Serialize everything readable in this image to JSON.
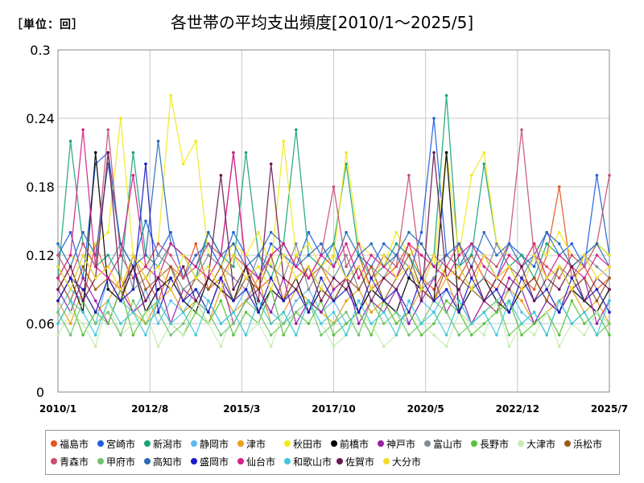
{
  "header": {
    "unit_label": "［単位：回］"
  },
  "chart_data": {
    "type": "line",
    "title": "各世帯の平均支出頻度[2010/1～2025/5]",
    "xlabel": "",
    "ylabel": "",
    "ylim": [
      0,
      0.3
    ],
    "y_ticks": [
      "0",
      "0.06",
      "0.12",
      "0.18",
      "0.24",
      "0.3"
    ],
    "x_ticks": [
      "2010/1",
      "2012/8",
      "2015/3",
      "2017/10",
      "2020/5",
      "2022/12",
      "2025/7"
    ],
    "x_range": [
      "2010/1",
      "2025/7"
    ],
    "grid": true,
    "legend_position": "bottom",
    "series": [
      {
        "name": "福島市",
        "color": "#e8541e",
        "values": [
          0.09,
          0.11,
          0.08,
          0.13,
          0.1,
          0.09,
          0.12,
          0.1,
          0.08,
          0.11,
          0.1,
          0.13,
          0.09,
          0.1,
          0.12,
          0.11,
          0.09,
          0.1,
          0.08,
          0.12,
          0.1,
          0.11,
          0.09,
          0.1,
          0.12,
          0.09,
          0.1,
          0.11,
          0.13,
          0.1,
          0.09,
          0.11,
          0.1,
          0.12,
          0.1,
          0.09,
          0.11,
          0.1,
          0.09,
          0.12,
          0.18,
          0.1,
          0.11,
          0.09,
          0.1
        ]
      },
      {
        "name": "宮崎市",
        "color": "#1f5fe0",
        "values": [
          0.12,
          0.14,
          0.1,
          0.2,
          0.21,
          0.13,
          0.11,
          0.15,
          0.12,
          0.14,
          0.1,
          0.12,
          0.13,
          0.11,
          0.14,
          0.12,
          0.1,
          0.13,
          0.12,
          0.11,
          0.14,
          0.12,
          0.13,
          0.1,
          0.12,
          0.11,
          0.13,
          0.12,
          0.1,
          0.14,
          0.24,
          0.12,
          0.11,
          0.13,
          0.12,
          0.1,
          0.13,
          0.12,
          0.11,
          0.14,
          0.12,
          0.13,
          0.11,
          0.19,
          0.12
        ]
      },
      {
        "name": "新潟市",
        "color": "#1aa37a",
        "values": [
          0.1,
          0.22,
          0.13,
          0.11,
          0.12,
          0.1,
          0.21,
          0.12,
          0.11,
          0.13,
          0.12,
          0.1,
          0.14,
          0.12,
          0.11,
          0.21,
          0.12,
          0.1,
          0.13,
          0.23,
          0.12,
          0.11,
          0.13,
          0.2,
          0.12,
          0.1,
          0.11,
          0.13,
          0.12,
          0.1,
          0.12,
          0.26,
          0.11,
          0.12,
          0.2,
          0.13,
          0.11,
          0.12,
          0.1,
          0.13,
          0.12,
          0.11,
          0.12,
          0.13,
          0.12
        ]
      },
      {
        "name": "静岡市",
        "color": "#5bbcf0",
        "values": [
          0.07,
          0.09,
          0.08,
          0.06,
          0.1,
          0.08,
          0.07,
          0.09,
          0.06,
          0.08,
          0.07,
          0.09,
          0.08,
          0.06,
          0.07,
          0.09,
          0.08,
          0.07,
          0.06,
          0.08,
          0.09,
          0.07,
          0.08,
          0.06,
          0.07,
          0.09,
          0.08,
          0.07,
          0.06,
          0.08,
          0.07,
          0.09,
          0.08,
          0.06,
          0.07,
          0.08,
          0.09,
          0.07,
          0.06,
          0.08,
          0.07,
          0.09,
          0.08,
          0.07,
          0.06
        ]
      },
      {
        "name": "津市",
        "color": "#e8a014",
        "values": [
          0.08,
          0.06,
          0.09,
          0.07,
          0.08,
          0.1,
          0.07,
          0.06,
          0.08,
          0.09,
          0.07,
          0.08,
          0.06,
          0.09,
          0.07,
          0.08,
          0.1,
          0.06,
          0.07,
          0.09,
          0.08,
          0.07,
          0.06,
          0.08,
          0.09,
          0.07,
          0.08,
          0.06,
          0.07,
          0.09,
          0.08,
          0.1,
          0.07,
          0.06,
          0.08,
          0.07,
          0.09,
          0.08,
          0.06,
          0.07,
          0.08,
          0.09,
          0.07,
          0.08,
          0.06
        ]
      },
      {
        "name": "秋田市",
        "color": "#f2e81c",
        "values": [
          0.1,
          0.12,
          0.11,
          0.13,
          0.14,
          0.24,
          0.12,
          0.11,
          0.13,
          0.26,
          0.2,
          0.22,
          0.12,
          0.11,
          0.13,
          0.12,
          0.14,
          0.11,
          0.22,
          0.12,
          0.13,
          0.11,
          0.12,
          0.21,
          0.13,
          0.12,
          0.11,
          0.14,
          0.12,
          0.13,
          0.11,
          0.21,
          0.12,
          0.19,
          0.21,
          0.13,
          0.12,
          0.11,
          0.13,
          0.12,
          0.14,
          0.12,
          0.11,
          0.13,
          0.12
        ]
      },
      {
        "name": "前橋市",
        "color": "#000000",
        "values": [
          0.08,
          0.1,
          0.07,
          0.21,
          0.09,
          0.08,
          0.11,
          0.07,
          0.09,
          0.1,
          0.08,
          0.07,
          0.1,
          0.09,
          0.08,
          0.11,
          0.07,
          0.09,
          0.08,
          0.1,
          0.07,
          0.09,
          0.08,
          0.1,
          0.07,
          0.09,
          0.08,
          0.07,
          0.1,
          0.09,
          0.08,
          0.21,
          0.07,
          0.09,
          0.1,
          0.08,
          0.07,
          0.09,
          0.1,
          0.08,
          0.07,
          0.09,
          0.08,
          0.07,
          0.09
        ]
      },
      {
        "name": "神戸市",
        "color": "#9b1fa8",
        "values": [
          0.09,
          0.07,
          0.1,
          0.08,
          0.06,
          0.09,
          0.07,
          0.08,
          0.1,
          0.06,
          0.09,
          0.08,
          0.07,
          0.1,
          0.06,
          0.08,
          0.09,
          0.07,
          0.1,
          0.06,
          0.08,
          0.07,
          0.09,
          0.1,
          0.06,
          0.08,
          0.07,
          0.09,
          0.06,
          0.08,
          0.1,
          0.07,
          0.09,
          0.06,
          0.08,
          0.07,
          0.1,
          0.09,
          0.06,
          0.08,
          0.07,
          0.09,
          0.1,
          0.06,
          0.08
        ]
      },
      {
        "name": "富山市",
        "color": "#7f8c9a",
        "values": [
          0.11,
          0.09,
          0.12,
          0.1,
          0.11,
          0.13,
          0.09,
          0.1,
          0.12,
          0.11,
          0.09,
          0.1,
          0.12,
          0.11,
          0.1,
          0.09,
          0.12,
          0.11,
          0.1,
          0.13,
          0.09,
          0.11,
          0.1,
          0.12,
          0.09,
          0.11,
          0.1,
          0.12,
          0.11,
          0.09,
          0.1,
          0.12,
          0.11,
          0.09,
          0.1,
          0.13,
          0.11,
          0.1,
          0.12,
          0.09,
          0.11,
          0.1,
          0.12,
          0.11,
          0.1
        ]
      },
      {
        "name": "長野市",
        "color": "#58c33a",
        "values": [
          0.06,
          0.08,
          0.05,
          0.07,
          0.06,
          0.09,
          0.05,
          0.07,
          0.08,
          0.06,
          0.05,
          0.07,
          0.06,
          0.08,
          0.05,
          0.07,
          0.06,
          0.09,
          0.05,
          0.07,
          0.06,
          0.08,
          0.05,
          0.06,
          0.07,
          0.05,
          0.08,
          0.06,
          0.07,
          0.05,
          0.06,
          0.08,
          0.07,
          0.05,
          0.06,
          0.07,
          0.08,
          0.05,
          0.06,
          0.07,
          0.05,
          0.08,
          0.06,
          0.07,
          0.05
        ]
      },
      {
        "name": "大津市",
        "color": "#c6ecb0",
        "values": [
          0.05,
          0.07,
          0.06,
          0.04,
          0.08,
          0.05,
          0.06,
          0.07,
          0.04,
          0.06,
          0.05,
          0.08,
          0.06,
          0.04,
          0.07,
          0.05,
          0.06,
          0.04,
          0.07,
          0.05,
          0.08,
          0.06,
          0.04,
          0.05,
          0.07,
          0.06,
          0.04,
          0.05,
          0.07,
          0.06,
          0.05,
          0.04,
          0.07,
          0.06,
          0.05,
          0.08,
          0.04,
          0.06,
          0.05,
          0.07,
          0.04,
          0.06,
          0.05,
          0.07,
          0.06
        ]
      },
      {
        "name": "浜松市",
        "color": "#9c5b18",
        "values": [
          0.1,
          0.08,
          0.11,
          0.09,
          0.1,
          0.08,
          0.12,
          0.09,
          0.1,
          0.11,
          0.08,
          0.1,
          0.09,
          0.11,
          0.08,
          0.1,
          0.09,
          0.12,
          0.08,
          0.1,
          0.11,
          0.09,
          0.08,
          0.1,
          0.09,
          0.11,
          0.08,
          0.1,
          0.12,
          0.09,
          0.08,
          0.11,
          0.1,
          0.09,
          0.08,
          0.1,
          0.11,
          0.09,
          0.1,
          0.08,
          0.11,
          0.09,
          0.1,
          0.08,
          0.1
        ]
      },
      {
        "name": "青森市",
        "color": "#c8506e",
        "values": [
          0.12,
          0.1,
          0.13,
          0.11,
          0.23,
          0.12,
          0.1,
          0.11,
          0.13,
          0.12,
          0.1,
          0.11,
          0.13,
          0.12,
          0.21,
          0.11,
          0.1,
          0.12,
          0.13,
          0.11,
          0.1,
          0.12,
          0.18,
          0.11,
          0.13,
          0.1,
          0.12,
          0.11,
          0.19,
          0.1,
          0.12,
          0.11,
          0.13,
          0.1,
          0.12,
          0.11,
          0.13,
          0.23,
          0.12,
          0.11,
          0.1,
          0.12,
          0.11,
          0.13,
          0.19
        ]
      },
      {
        "name": "甲府市",
        "color": "#6fc46a",
        "values": [
          0.07,
          0.05,
          0.08,
          0.06,
          0.07,
          0.05,
          0.08,
          0.06,
          0.07,
          0.05,
          0.06,
          0.08,
          0.07,
          0.05,
          0.06,
          0.08,
          0.07,
          0.05,
          0.06,
          0.07,
          0.08,
          0.05,
          0.06,
          0.07,
          0.05,
          0.08,
          0.06,
          0.07,
          0.05,
          0.06,
          0.08,
          0.07,
          0.05,
          0.06,
          0.07,
          0.08,
          0.05,
          0.06,
          0.07,
          0.05,
          0.08,
          0.06,
          0.07,
          0.05,
          0.06
        ]
      },
      {
        "name": "高知市",
        "color": "#2a6cb8",
        "values": [
          0.13,
          0.11,
          0.14,
          0.12,
          0.2,
          0.13,
          0.11,
          0.12,
          0.22,
          0.13,
          0.12,
          0.11,
          0.14,
          0.12,
          0.13,
          0.11,
          0.12,
          0.14,
          0.13,
          0.11,
          0.12,
          0.13,
          0.11,
          0.14,
          0.12,
          0.13,
          0.11,
          0.12,
          0.14,
          0.13,
          0.11,
          0.12,
          0.13,
          0.11,
          0.14,
          0.12,
          0.13,
          0.11,
          0.12,
          0.14,
          0.13,
          0.11,
          0.12,
          0.13,
          0.11
        ]
      },
      {
        "name": "盛岡市",
        "color": "#1c1cc8",
        "values": [
          0.08,
          0.1,
          0.09,
          0.07,
          0.1,
          0.08,
          0.09,
          0.2,
          0.07,
          0.1,
          0.08,
          0.09,
          0.07,
          0.1,
          0.08,
          0.09,
          0.07,
          0.1,
          0.08,
          0.09,
          0.07,
          0.1,
          0.08,
          0.09,
          0.07,
          0.1,
          0.08,
          0.09,
          0.07,
          0.1,
          0.08,
          0.09,
          0.07,
          0.1,
          0.08,
          0.09,
          0.07,
          0.1,
          0.08,
          0.09,
          0.07,
          0.1,
          0.08,
          0.09,
          0.07
        ]
      },
      {
        "name": "仙台市",
        "color": "#d4208a",
        "values": [
          0.1,
          0.12,
          0.23,
          0.11,
          0.1,
          0.12,
          0.19,
          0.11,
          0.1,
          0.13,
          0.12,
          0.11,
          0.1,
          0.12,
          0.21,
          0.11,
          0.1,
          0.12,
          0.13,
          0.11,
          0.1,
          0.12,
          0.11,
          0.13,
          0.1,
          0.12,
          0.11,
          0.1,
          0.13,
          0.12,
          0.11,
          0.1,
          0.12,
          0.13,
          0.11,
          0.1,
          0.12,
          0.11,
          0.13,
          0.1,
          0.12,
          0.11,
          0.1,
          0.12,
          0.11
        ]
      },
      {
        "name": "和歌山市",
        "color": "#3fc8dc",
        "values": [
          0.06,
          0.08,
          0.07,
          0.05,
          0.08,
          0.06,
          0.07,
          0.05,
          0.08,
          0.06,
          0.07,
          0.05,
          0.08,
          0.06,
          0.07,
          0.05,
          0.08,
          0.06,
          0.07,
          0.05,
          0.08,
          0.06,
          0.07,
          0.05,
          0.08,
          0.06,
          0.07,
          0.05,
          0.08,
          0.06,
          0.07,
          0.05,
          0.08,
          0.06,
          0.07,
          0.05,
          0.08,
          0.06,
          0.07,
          0.05,
          0.08,
          0.06,
          0.07,
          0.05,
          0.08
        ]
      },
      {
        "name": "佐賀市",
        "color": "#6a1850",
        "values": [
          0.09,
          0.11,
          0.08,
          0.1,
          0.21,
          0.09,
          0.11,
          0.08,
          0.1,
          0.09,
          0.11,
          0.08,
          0.1,
          0.19,
          0.09,
          0.11,
          0.08,
          0.2,
          0.1,
          0.09,
          0.11,
          0.08,
          0.1,
          0.09,
          0.11,
          0.08,
          0.1,
          0.09,
          0.11,
          0.08,
          0.21,
          0.1,
          0.09,
          0.11,
          0.08,
          0.1,
          0.09,
          0.11,
          0.08,
          0.1,
          0.09,
          0.11,
          0.08,
          0.1,
          0.09
        ]
      },
      {
        "name": "大分市",
        "color": "#f0dc28",
        "values": [
          0.11,
          0.09,
          0.12,
          0.1,
          0.11,
          0.09,
          0.12,
          0.1,
          0.11,
          0.09,
          0.12,
          0.1,
          0.11,
          0.09,
          0.12,
          0.1,
          0.11,
          0.09,
          0.12,
          0.1,
          0.11,
          0.09,
          0.12,
          0.1,
          0.11,
          0.09,
          0.12,
          0.1,
          0.11,
          0.09,
          0.12,
          0.1,
          0.11,
          0.09,
          0.12,
          0.1,
          0.11,
          0.09,
          0.12,
          0.1,
          0.11,
          0.09,
          0.12,
          0.1,
          0.11
        ]
      }
    ]
  }
}
